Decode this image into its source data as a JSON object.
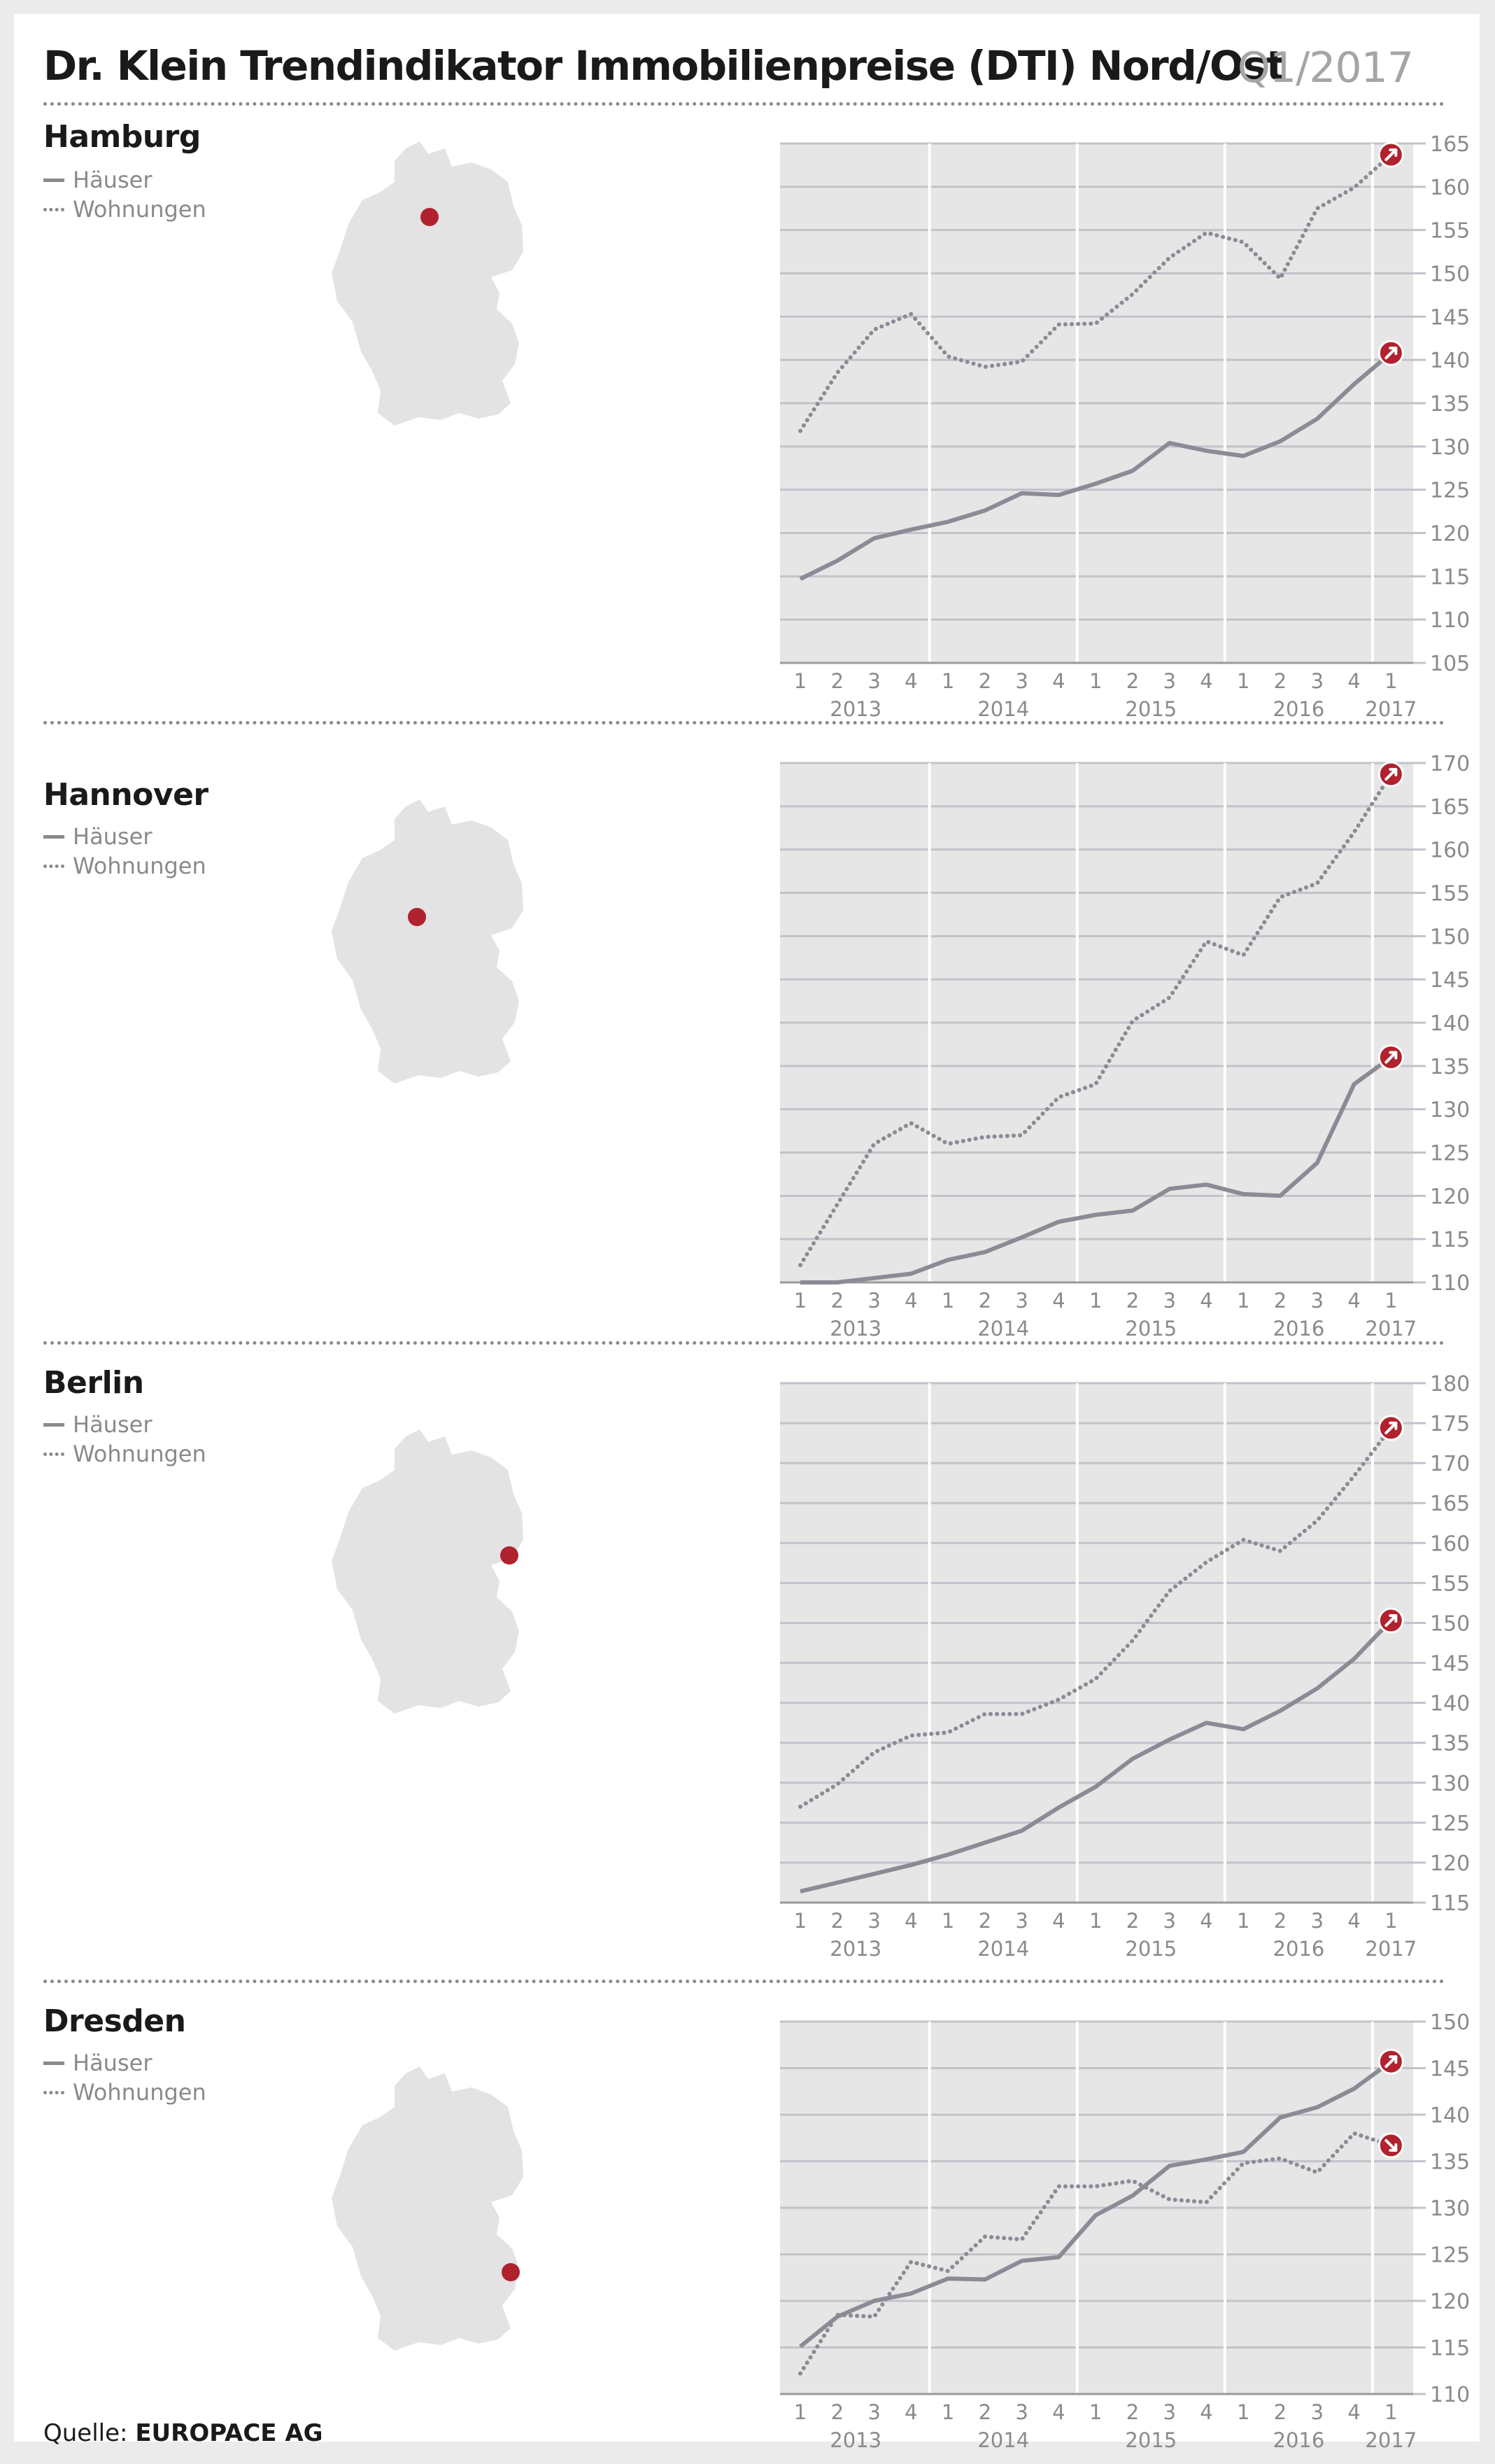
{
  "title": "Dr. Klein Trendindikator Immobilienpreise (DTI) Nord/Ost",
  "period": "Q1/2017",
  "source": {
    "label": "Quelle:",
    "name": "EUROPACE AG"
  },
  "legend": {
    "houses": "Häuser",
    "apartments": "Wohnungen"
  },
  "colors": {
    "line": "#8b8b96",
    "marker": "#b0222e",
    "plot_bg": "#e6e6e6",
    "map": "#e3e3e3"
  },
  "quarter_labels": [
    "1",
    "2",
    "3",
    "4",
    "1",
    "2",
    "3",
    "4",
    "1",
    "2",
    "3",
    "4",
    "1",
    "2",
    "3",
    "4",
    "1"
  ],
  "year_labels": [
    "2013",
    "2014",
    "2015",
    "2016",
    "2017"
  ],
  "chart_data": [
    {
      "type": "line",
      "city": "Hamburg",
      "marker_position": "north",
      "ylim": [
        105,
        165
      ],
      "yticks": [
        105,
        110,
        115,
        120,
        125,
        130,
        135,
        140,
        145,
        150,
        155,
        160,
        165
      ],
      "series": [
        {
          "name": "Häuser",
          "style": "solid",
          "values": [
            114.7,
            116.8,
            119.4,
            120.4,
            121.3,
            122.6,
            124.6,
            124.4,
            125.7,
            127.2,
            130.4,
            129.5,
            128.9,
            130.6,
            133.2,
            137.2,
            140.8
          ]
        },
        {
          "name": "Wohnungen",
          "style": "dotted",
          "values": [
            131.8,
            138.5,
            143.5,
            145.3,
            140.4,
            139.2,
            139.8,
            144.1,
            144.2,
            147.6,
            151.8,
            154.7,
            153.6,
            149.4,
            157.5,
            159.9,
            163.7
          ]
        }
      ]
    },
    {
      "type": "line",
      "city": "Hannover",
      "marker_position": "west",
      "ylim": [
        110,
        170
      ],
      "yticks": [
        110,
        115,
        120,
        125,
        130,
        135,
        140,
        145,
        150,
        155,
        160,
        165,
        170
      ],
      "series": [
        {
          "name": "Häuser",
          "style": "solid",
          "values": [
            110.0,
            110.0,
            110.5,
            111.0,
            112.6,
            113.5,
            115.2,
            117.0,
            117.8,
            118.3,
            120.8,
            121.3,
            120.2,
            120.0,
            123.8,
            132.9,
            136.0
          ]
        },
        {
          "name": "Wohnungen",
          "style": "dotted",
          "values": [
            112.0,
            119.0,
            126.0,
            128.4,
            126.0,
            126.8,
            127.0,
            131.4,
            132.9,
            140.2,
            142.9,
            149.4,
            147.8,
            154.5,
            156.1,
            162.0,
            168.7
          ]
        }
      ]
    },
    {
      "type": "line",
      "city": "Berlin",
      "marker_position": "east",
      "ylim": [
        115,
        180
      ],
      "yticks": [
        115,
        120,
        125,
        130,
        135,
        140,
        145,
        150,
        155,
        160,
        165,
        170,
        175,
        180
      ],
      "series": [
        {
          "name": "Häuser",
          "style": "solid",
          "values": [
            116.4,
            117.5,
            118.6,
            119.7,
            121.0,
            122.5,
            124.0,
            126.9,
            129.5,
            133.0,
            135.4,
            137.5,
            136.7,
            139.0,
            141.8,
            145.5,
            150.3
          ]
        },
        {
          "name": "Wohnungen",
          "style": "dotted",
          "values": [
            127.0,
            129.8,
            133.8,
            135.9,
            136.3,
            138.6,
            138.6,
            140.4,
            143.0,
            147.8,
            154.0,
            157.6,
            160.4,
            159.0,
            162.8,
            168.4,
            174.4
          ]
        }
      ]
    },
    {
      "type": "line",
      "city": "Dresden",
      "marker_position": "southeast",
      "ylim": [
        110,
        150
      ],
      "yticks": [
        110,
        115,
        120,
        125,
        130,
        135,
        140,
        145,
        150
      ],
      "series": [
        {
          "name": "Häuser",
          "style": "solid",
          "values": [
            115.1,
            118.3,
            120.0,
            120.8,
            122.4,
            122.3,
            124.3,
            124.7,
            129.2,
            131.3,
            134.5,
            135.2,
            136.0,
            139.7,
            140.8,
            142.8,
            145.7
          ]
        },
        {
          "name": "Wohnungen",
          "style": "dotted",
          "values": [
            112.2,
            118.5,
            118.3,
            124.2,
            123.2,
            126.9,
            126.6,
            132.3,
            132.3,
            132.9,
            130.9,
            130.6,
            134.8,
            135.3,
            133.8,
            138.0,
            136.7
          ]
        }
      ]
    }
  ]
}
